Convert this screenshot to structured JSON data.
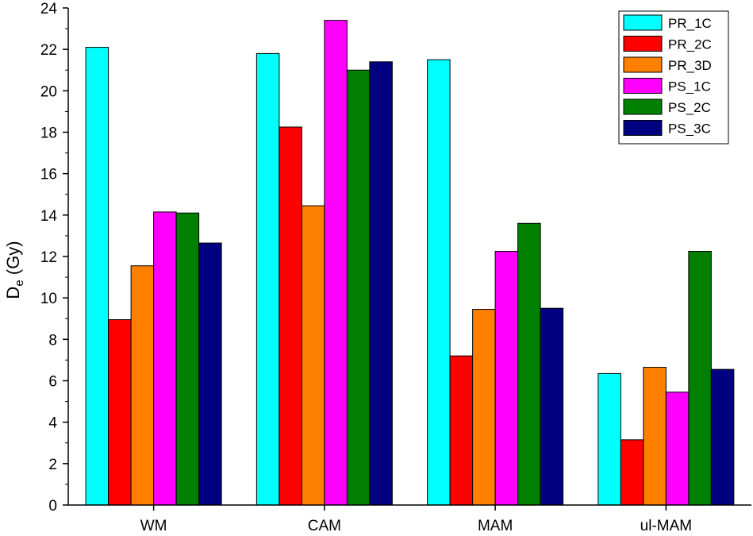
{
  "chart_data": {
    "type": "bar",
    "categories": [
      "WM",
      "CAM",
      "MAM",
      "ul-MAM"
    ],
    "series": [
      {
        "name": "PR_1C",
        "color": "#00ffff",
        "values": [
          22.1,
          21.8,
          21.5,
          6.35
        ]
      },
      {
        "name": "PR_2C",
        "color": "#ff0000",
        "values": [
          8.95,
          18.25,
          7.2,
          3.15
        ]
      },
      {
        "name": "PR_3D",
        "color": "#ff8000",
        "values": [
          11.55,
          14.45,
          9.45,
          6.65
        ]
      },
      {
        "name": "PS_1C",
        "color": "#ff00ff",
        "values": [
          14.15,
          23.4,
          12.25,
          5.45
        ]
      },
      {
        "name": "PS_2C",
        "color": "#007f00",
        "values": [
          14.1,
          21.0,
          13.6,
          12.25
        ]
      },
      {
        "name": "PS_3C",
        "color": "#000080",
        "values": [
          12.65,
          21.4,
          9.5,
          6.55
        ]
      }
    ],
    "ylabel": {
      "main": "D",
      "subscript": "e",
      "suffix": " (Gy)"
    },
    "xlabel": "",
    "ylim": [
      0,
      24
    ],
    "yticks": [
      "0",
      "2",
      "4",
      "6",
      "8",
      "10",
      "12",
      "14",
      "16",
      "18",
      "20",
      "22",
      "24"
    ],
    "grid": false,
    "legend_position": "top-right"
  }
}
